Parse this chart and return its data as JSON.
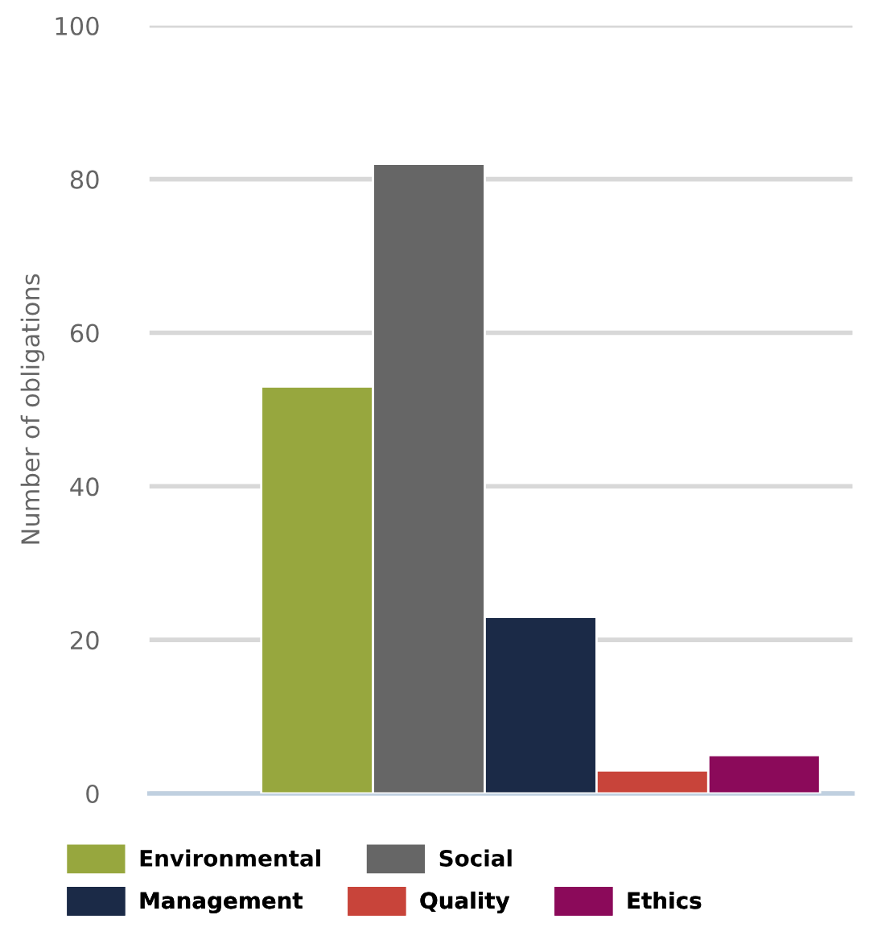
{
  "chart_data": {
    "type": "bar",
    "ylabel": "Number of obligations",
    "categories": [
      null
    ],
    "series": [
      {
        "name": "Environmental",
        "color": "#97a73e",
        "values": [
          53
        ]
      },
      {
        "name": "Social",
        "color": "#666666",
        "values": [
          82
        ]
      },
      {
        "name": "Management",
        "color": "#1b2a47",
        "values": [
          23
        ]
      },
      {
        "name": "Quality",
        "color": "#c8443a",
        "values": [
          3
        ]
      },
      {
        "name": "Ethics",
        "color": "#8b0a5a",
        "values": [
          5
        ]
      }
    ],
    "ylim": [
      0,
      100
    ],
    "yticks": [
      0,
      20,
      40,
      60,
      80,
      100
    ],
    "grid": "y",
    "legend": "bottom"
  }
}
